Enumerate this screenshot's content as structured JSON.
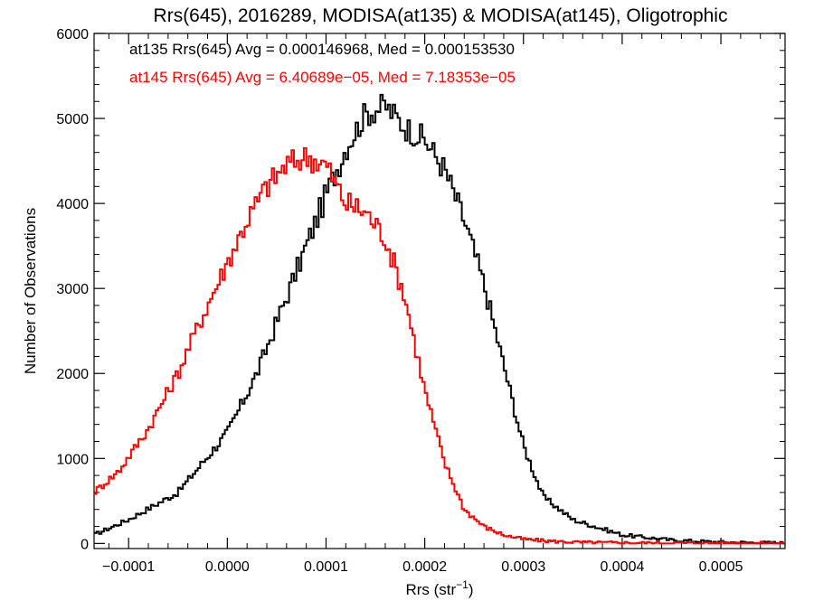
{
  "chart_data": {
    "type": "line",
    "step": true,
    "title": "Rrs(645), 2016289, MODISA(at135) & MODISA(at145), Oligotrophic",
    "xlabel_main": "Rrs (str",
    "xlabel_sup": "−1",
    "xlabel_close": ")",
    "ylabel": "Number of Observations",
    "xlim": [
      -0.000135,
      0.000565
    ],
    "ylim": [
      -60,
      6000
    ],
    "grid": false,
    "x_ticks": [
      {
        "value": -0.0001,
        "label": "−0.0001"
      },
      {
        "value": 0.0,
        "label": "0.0000"
      },
      {
        "value": 0.0001,
        "label": "0.0001"
      },
      {
        "value": 0.0002,
        "label": "0.0002"
      },
      {
        "value": 0.0003,
        "label": "0.0003"
      },
      {
        "value": 0.0004,
        "label": "0.0004"
      },
      {
        "value": 0.0005,
        "label": "0.0005"
      }
    ],
    "y_ticks": [
      {
        "value": 0,
        "label": "0"
      },
      {
        "value": 1000,
        "label": "1000"
      },
      {
        "value": 2000,
        "label": "2000"
      },
      {
        "value": 3000,
        "label": "3000"
      },
      {
        "value": 4000,
        "label": "4000"
      },
      {
        "value": 5000,
        "label": "5000"
      },
      {
        "value": 6000,
        "label": "6000"
      }
    ],
    "annotations": [
      {
        "text": "at135 Rrs(645) Avg = 0.000146968, Med = 0.000153530",
        "color": "#000000"
      },
      {
        "text": "at145 Rrs(645) Avg = 6.40689e−05, Med = 7.18353e−05",
        "color": "#ff0000"
      }
    ],
    "series": [
      {
        "color": "#000000",
        "x": [
          -0.000135,
          -0.0001,
          -5e-05,
          0.0,
          3e-05,
          6e-05,
          8e-05,
          0.0001,
          0.00012,
          0.00014,
          0.00016,
          0.00018,
          0.0002,
          0.00022,
          0.00024,
          0.00026,
          0.00028,
          0.0003,
          0.00032,
          0.00035,
          0.0004,
          0.00045,
          0.0005,
          0.000565
        ],
        "y": [
          100,
          280,
          600,
          1300,
          2000,
          2900,
          3500,
          4100,
          4650,
          5050,
          5150,
          4900,
          4750,
          4400,
          3800,
          3050,
          2100,
          1150,
          550,
          280,
          100,
          40,
          15,
          5
        ]
      },
      {
        "color": "#ff0000",
        "x": [
          -0.000135,
          -0.00011,
          -8e-05,
          -5e-05,
          -3e-05,
          0.0,
          2e-05,
          4e-05,
          6e-05,
          8e-05,
          0.0001,
          0.00012,
          0.00014,
          0.00016,
          0.00018,
          0.0002,
          0.00022,
          0.00024,
          0.00026,
          0.00028,
          0.0003,
          0.00033,
          0.00036,
          0.0004,
          0.00045,
          0.000565
        ],
        "y": [
          600,
          850,
          1350,
          2000,
          2550,
          3300,
          3800,
          4200,
          4450,
          4550,
          4450,
          4000,
          3900,
          3600,
          2900,
          1800,
          950,
          400,
          200,
          100,
          50,
          25,
          12,
          8,
          5,
          2
        ]
      }
    ]
  }
}
